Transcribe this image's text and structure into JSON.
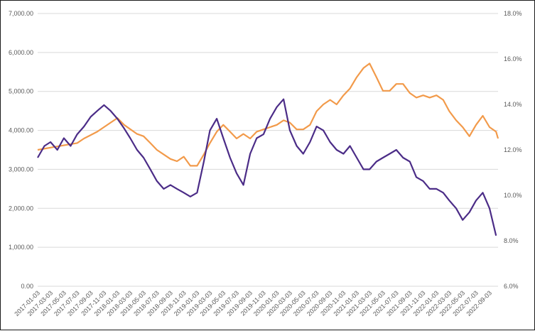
{
  "chart_data": {
    "type": "line",
    "title": "",
    "xlabel": "",
    "ylabel": "",
    "y2label": "",
    "grid": true,
    "legend": "none",
    "ylim": [
      0,
      7000
    ],
    "y2lim": [
      6.0,
      18.0
    ],
    "y_ticks": [
      "0.00",
      "1,000.00",
      "2,000.00",
      "3,000.00",
      "4,000.00",
      "5,000.00",
      "6,000.00",
      "7,000.00"
    ],
    "y2_ticks": [
      "6.0%",
      "8.0%",
      "10.0%",
      "12.0%",
      "14.0%",
      "16.0%",
      "18.0%"
    ],
    "x_ticks": [
      "2017-01-03",
      "2017-03-03",
      "2017-05-03",
      "2017-07-03",
      "2017-09-03",
      "2017-11-03",
      "2018-01-03",
      "2018-03-03",
      "2018-05-03",
      "2018-07-03",
      "2018-09-03",
      "2018-11-03",
      "2019-01-03",
      "2019-03-03",
      "2019-05-03",
      "2019-07-03",
      "2019-09-03",
      "2019-11-03",
      "2020-01-03",
      "2020-03-03",
      "2020-05-03",
      "2020-07-03",
      "2020-09-03",
      "2020-11-03",
      "2021-01-03",
      "2021-03-03",
      "2021-05-03",
      "2021-07-03",
      "2021-09-03",
      "2021-11-03",
      "2022-01-03",
      "2022-03-03",
      "2022-05-03",
      "2022-07-03",
      "2022-09-03"
    ],
    "x_range": [
      "2017-01-01",
      "2022-10-10"
    ],
    "series": [
      {
        "name": "",
        "axis": "left",
        "color": "#4B2C87",
        "points": [
          [
            "2017-01-01",
            3300
          ],
          [
            "2017-02-01",
            3600
          ],
          [
            "2017-03-01",
            3700
          ],
          [
            "2017-04-01",
            3500
          ],
          [
            "2017-05-01",
            3800
          ],
          [
            "2017-06-01",
            3600
          ],
          [
            "2017-07-01",
            3900
          ],
          [
            "2017-08-01",
            4100
          ],
          [
            "2017-09-01",
            4350
          ],
          [
            "2017-10-01",
            4500
          ],
          [
            "2017-11-01",
            4650
          ],
          [
            "2017-12-01",
            4500
          ],
          [
            "2018-01-01",
            4300
          ],
          [
            "2018-02-01",
            4050
          ],
          [
            "2018-03-01",
            3800
          ],
          [
            "2018-04-01",
            3500
          ],
          [
            "2018-05-01",
            3300
          ],
          [
            "2018-06-01",
            3000
          ],
          [
            "2018-07-01",
            2700
          ],
          [
            "2018-08-01",
            2500
          ],
          [
            "2018-09-01",
            2600
          ],
          [
            "2018-10-01",
            2500
          ],
          [
            "2018-11-01",
            2400
          ],
          [
            "2018-12-01",
            2300
          ],
          [
            "2019-01-01",
            2400
          ],
          [
            "2019-02-01",
            3200
          ],
          [
            "2019-03-01",
            4000
          ],
          [
            "2019-04-01",
            4300
          ],
          [
            "2019-05-01",
            3800
          ],
          [
            "2019-06-01",
            3300
          ],
          [
            "2019-07-01",
            2900
          ],
          [
            "2019-08-01",
            2600
          ],
          [
            "2019-09-01",
            3400
          ],
          [
            "2019-10-01",
            3800
          ],
          [
            "2019-11-01",
            3900
          ],
          [
            "2019-12-01",
            4300
          ],
          [
            "2020-01-01",
            4600
          ],
          [
            "2020-02-01",
            4800
          ],
          [
            "2020-03-01",
            4000
          ],
          [
            "2020-04-01",
            3600
          ],
          [
            "2020-05-01",
            3400
          ],
          [
            "2020-06-01",
            3700
          ],
          [
            "2020-07-01",
            4100
          ],
          [
            "2020-08-01",
            4000
          ],
          [
            "2020-09-01",
            3700
          ],
          [
            "2020-10-01",
            3500
          ],
          [
            "2020-11-01",
            3400
          ],
          [
            "2020-12-01",
            3600
          ],
          [
            "2021-01-01",
            3300
          ],
          [
            "2021-02-01",
            3000
          ],
          [
            "2021-03-01",
            3000
          ],
          [
            "2021-04-01",
            3200
          ],
          [
            "2021-05-01",
            3300
          ],
          [
            "2021-06-01",
            3400
          ],
          [
            "2021-07-01",
            3500
          ],
          [
            "2021-08-01",
            3300
          ],
          [
            "2021-09-01",
            3200
          ],
          [
            "2021-10-01",
            2800
          ],
          [
            "2021-11-01",
            2700
          ],
          [
            "2021-12-01",
            2500
          ],
          [
            "2022-01-01",
            2500
          ],
          [
            "2022-02-01",
            2400
          ],
          [
            "2022-03-01",
            2200
          ],
          [
            "2022-04-01",
            2000
          ],
          [
            "2022-05-01",
            1700
          ],
          [
            "2022-06-01",
            1900
          ],
          [
            "2022-07-01",
            2200
          ],
          [
            "2022-08-01",
            2400
          ],
          [
            "2022-09-01",
            2000
          ],
          [
            "2022-10-01",
            1300
          ]
        ]
      },
      {
        "name": "",
        "axis": "right",
        "color": "#F29A4A",
        "points": [
          [
            "2017-01-01",
            12.0
          ],
          [
            "2017-03-01",
            12.1
          ],
          [
            "2017-05-01",
            12.2
          ],
          [
            "2017-07-01",
            12.3
          ],
          [
            "2017-08-01",
            12.5
          ],
          [
            "2017-10-01",
            12.8
          ],
          [
            "2017-12-01",
            13.2
          ],
          [
            "2018-01-01",
            13.4
          ],
          [
            "2018-02-01",
            13.1
          ],
          [
            "2018-04-01",
            12.7
          ],
          [
            "2018-05-01",
            12.6
          ],
          [
            "2018-06-01",
            12.3
          ],
          [
            "2018-07-01",
            12.0
          ],
          [
            "2018-08-01",
            11.8
          ],
          [
            "2018-09-01",
            11.6
          ],
          [
            "2018-10-01",
            11.5
          ],
          [
            "2018-11-01",
            11.7
          ],
          [
            "2018-12-01",
            11.3
          ],
          [
            "2019-01-01",
            11.3
          ],
          [
            "2019-02-01",
            11.8
          ],
          [
            "2019-03-01",
            12.3
          ],
          [
            "2019-04-01",
            12.8
          ],
          [
            "2019-05-01",
            13.1
          ],
          [
            "2019-06-01",
            12.8
          ],
          [
            "2019-07-01",
            12.5
          ],
          [
            "2019-08-01",
            12.7
          ],
          [
            "2019-09-01",
            12.5
          ],
          [
            "2019-10-01",
            12.8
          ],
          [
            "2019-11-01",
            12.9
          ],
          [
            "2019-12-01",
            13.0
          ],
          [
            "2020-01-01",
            13.1
          ],
          [
            "2020-02-01",
            13.3
          ],
          [
            "2020-03-01",
            13.2
          ],
          [
            "2020-04-01",
            12.9
          ],
          [
            "2020-05-01",
            12.9
          ],
          [
            "2020-06-01",
            13.1
          ],
          [
            "2020-07-01",
            13.7
          ],
          [
            "2020-08-01",
            14.0
          ],
          [
            "2020-09-01",
            14.2
          ],
          [
            "2020-10-01",
            14.0
          ],
          [
            "2020-11-01",
            14.4
          ],
          [
            "2020-12-01",
            14.7
          ],
          [
            "2021-01-01",
            15.2
          ],
          [
            "2021-02-01",
            15.6
          ],
          [
            "2021-03-01",
            15.8
          ],
          [
            "2021-04-01",
            15.2
          ],
          [
            "2021-05-01",
            14.6
          ],
          [
            "2021-06-01",
            14.6
          ],
          [
            "2021-07-01",
            14.9
          ],
          [
            "2021-08-01",
            14.9
          ],
          [
            "2021-09-01",
            14.5
          ],
          [
            "2021-10-01",
            14.3
          ],
          [
            "2021-11-01",
            14.4
          ],
          [
            "2021-12-01",
            14.3
          ],
          [
            "2022-01-01",
            14.4
          ],
          [
            "2022-02-01",
            14.2
          ],
          [
            "2022-03-01",
            13.7
          ],
          [
            "2022-04-01",
            13.3
          ],
          [
            "2022-05-01",
            13.0
          ],
          [
            "2022-06-01",
            12.6
          ],
          [
            "2022-07-01",
            13.1
          ],
          [
            "2022-08-01",
            13.5
          ],
          [
            "2022-09-01",
            13.0
          ],
          [
            "2022-10-01",
            12.8
          ],
          [
            "2022-10-10",
            12.5
          ]
        ]
      }
    ]
  }
}
